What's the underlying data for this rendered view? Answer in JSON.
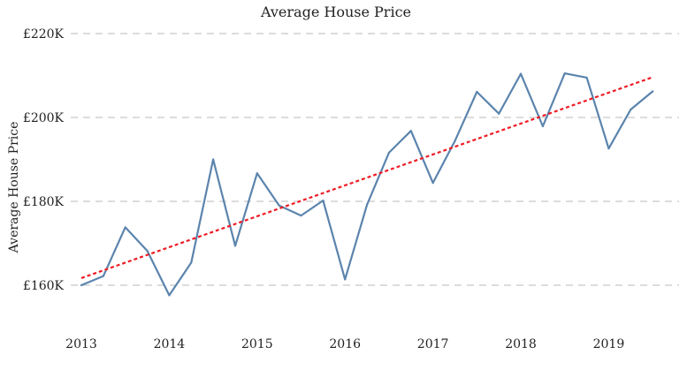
{
  "chart_data": {
    "type": "line",
    "title": "Average House Price",
    "xlabel": "",
    "ylabel": "Average House Price",
    "x_tick_labels": [
      "2013",
      "2014",
      "2015",
      "2016",
      "2017",
      "2018",
      "2019"
    ],
    "y_tick_labels": [
      "£160K",
      "£180K",
      "£200K",
      "£220K"
    ],
    "y_ticks": [
      160000,
      180000,
      200000,
      220000
    ],
    "ylim": [
      150000,
      222000
    ],
    "xlim": [
      2013.0,
      2019.75
    ],
    "grid": "horizontal-dashed",
    "legend": "none",
    "series": [
      {
        "values": [
          {
            "x": 2013.0,
            "y": 160000
          },
          {
            "x": 2013.25,
            "y": 162200
          },
          {
            "x": 2013.5,
            "y": 173800
          },
          {
            "x": 2013.75,
            "y": 168200
          },
          {
            "x": 2014.0,
            "y": 157600
          },
          {
            "x": 2014.25,
            "y": 165400
          },
          {
            "x": 2014.5,
            "y": 190000
          },
          {
            "x": 2014.75,
            "y": 169400
          },
          {
            "x": 2015.0,
            "y": 186700
          },
          {
            "x": 2015.25,
            "y": 179000
          },
          {
            "x": 2015.5,
            "y": 176600
          },
          {
            "x": 2015.75,
            "y": 180200
          },
          {
            "x": 2016.0,
            "y": 161400
          },
          {
            "x": 2016.25,
            "y": 179200
          },
          {
            "x": 2016.5,
            "y": 191600
          },
          {
            "x": 2016.75,
            "y": 196800
          },
          {
            "x": 2017.0,
            "y": 184400
          },
          {
            "x": 2017.25,
            "y": 194400
          },
          {
            "x": 2017.5,
            "y": 206100
          },
          {
            "x": 2017.75,
            "y": 200900
          },
          {
            "x": 2018.0,
            "y": 210400
          },
          {
            "x": 2018.25,
            "y": 197900
          },
          {
            "x": 2018.5,
            "y": 210500
          },
          {
            "x": 2018.75,
            "y": 209500
          },
          {
            "x": 2019.0,
            "y": 192600
          },
          {
            "x": 2019.25,
            "y": 201900
          },
          {
            "x": 2019.5,
            "y": 206200
          }
        ]
      }
    ],
    "trendline": {
      "style": "dotted",
      "start": {
        "x": 2013.0,
        "y": 161700
      },
      "end": {
        "x": 2019.5,
        "y": 209600
      }
    },
    "colors": {
      "series": "#5b84ad",
      "trendline": "#ee1c25",
      "grid": "#c8c8c8",
      "text": "#222222"
    }
  }
}
